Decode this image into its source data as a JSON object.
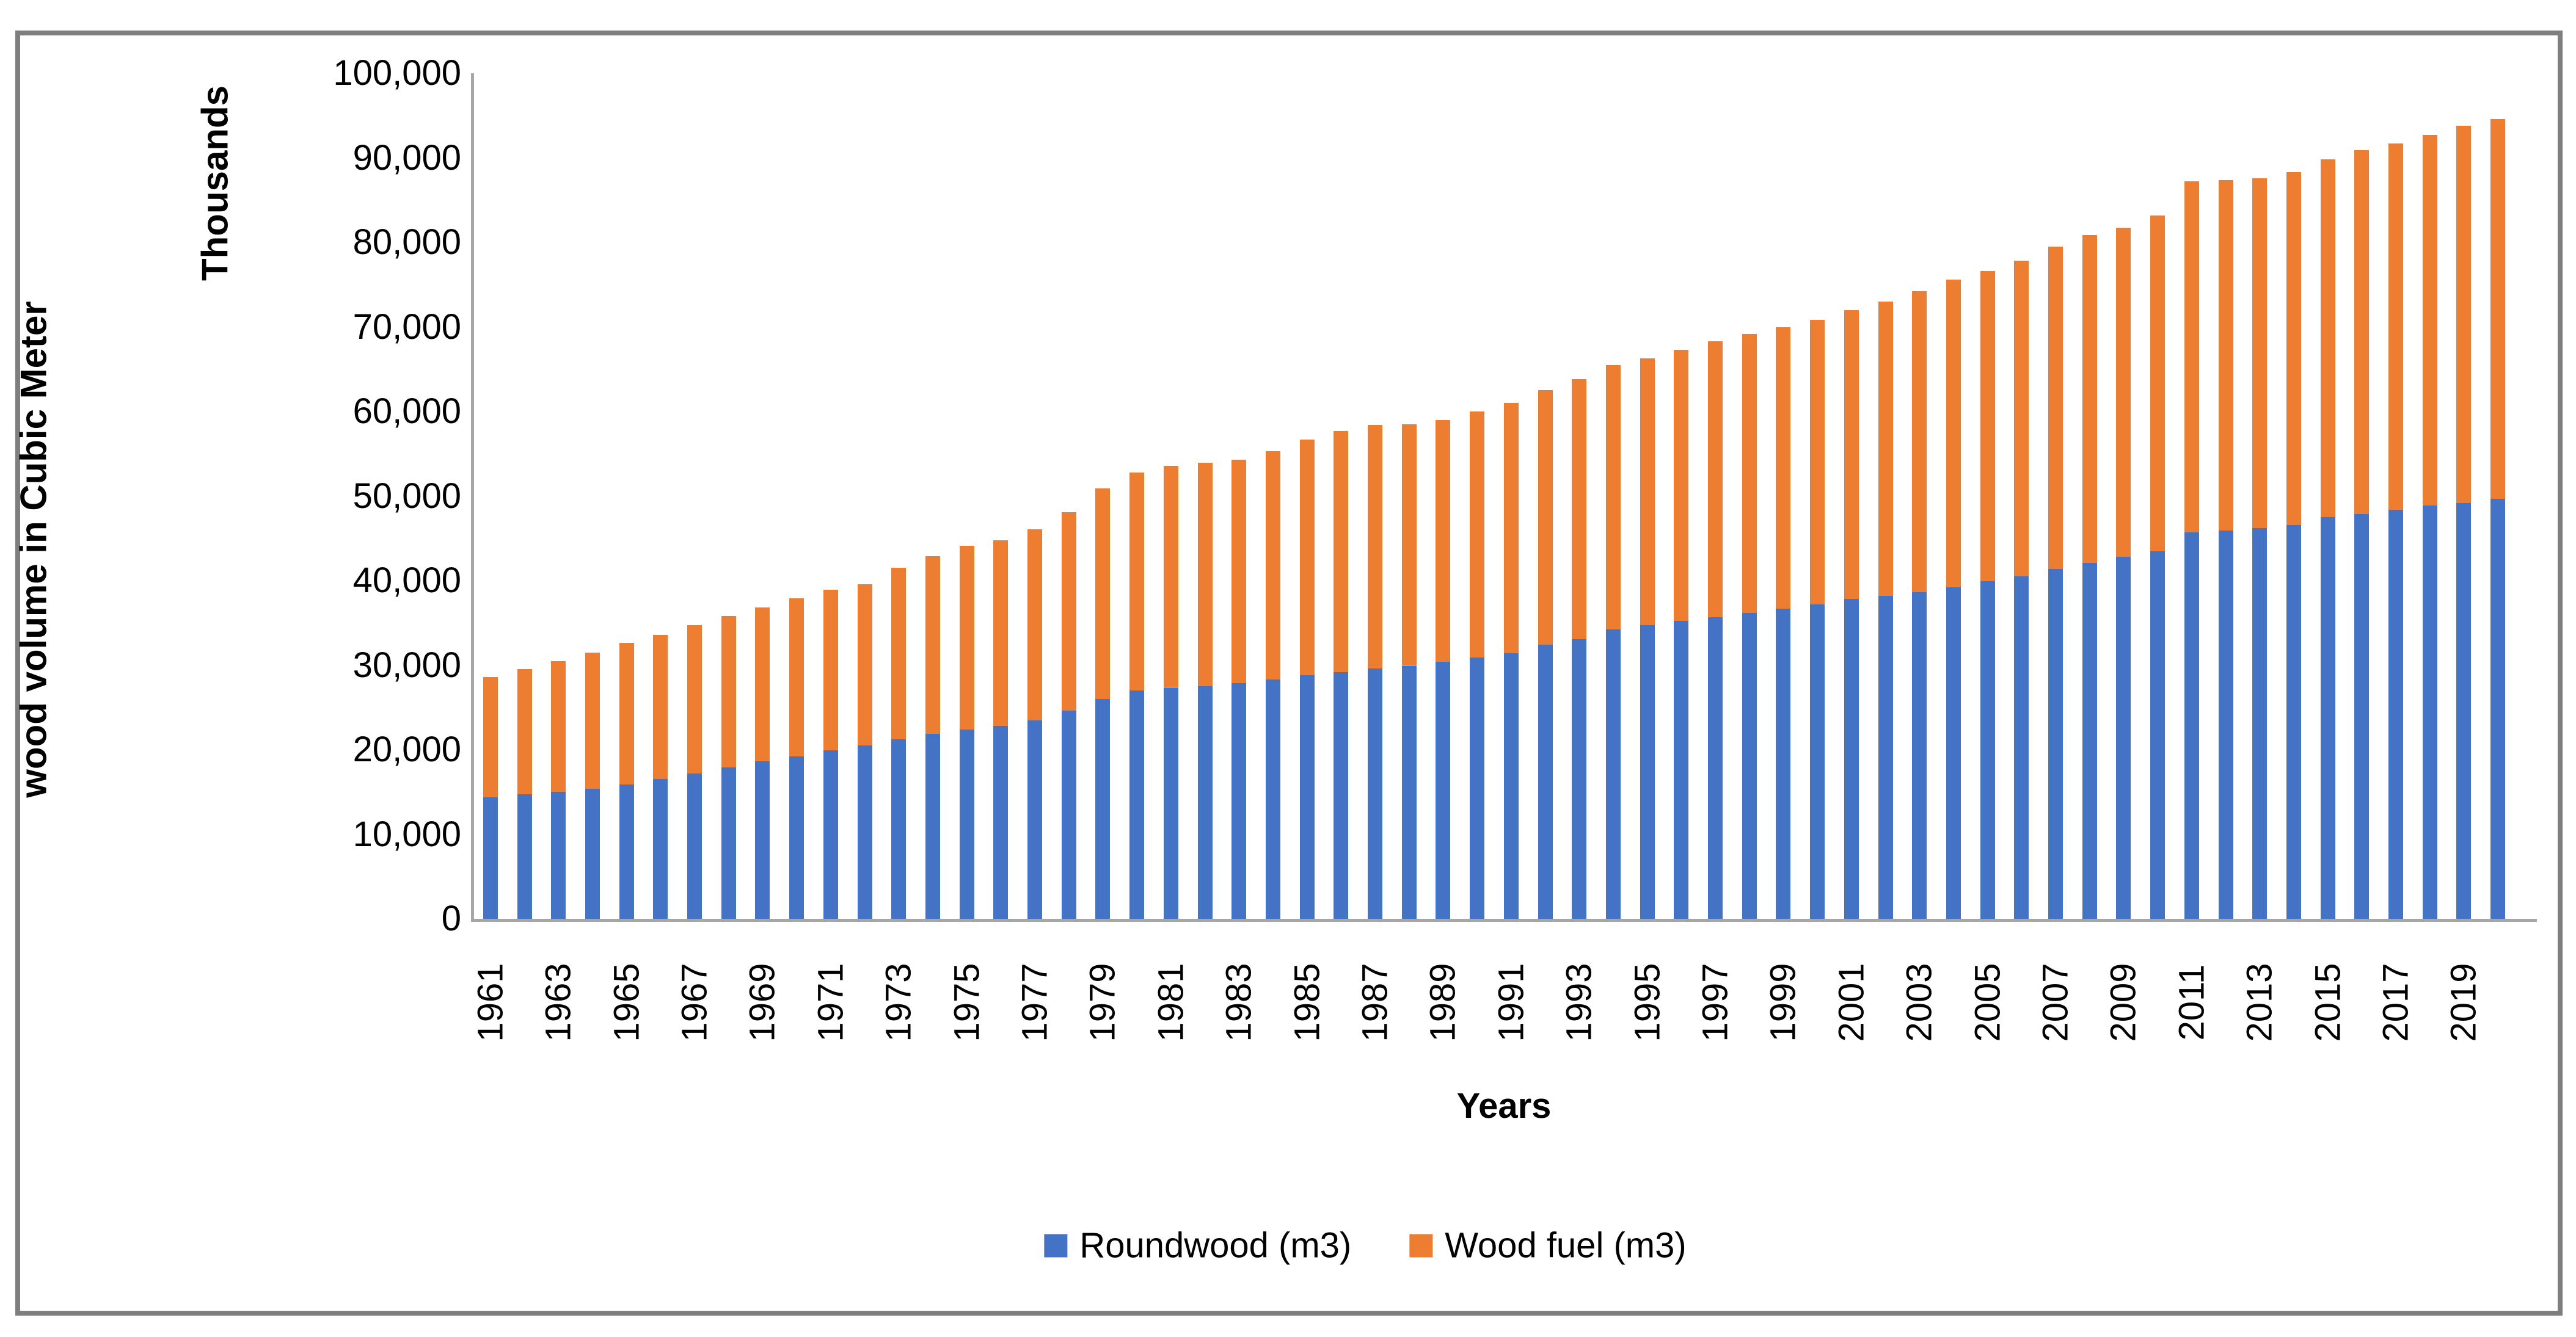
{
  "figure": {
    "background_color": "#FFFFFF",
    "border_color": "#7F7F7F",
    "axis_line_color": "#A6A6A6"
  },
  "axis_titles": {
    "x_title": "Years",
    "y_title": "wood volume in Cubic Meter",
    "y_units": "Thousands"
  },
  "legend": {
    "items": [
      {
        "label": "Roundwood (m3)",
        "color": "#4472C4"
      },
      {
        "label": "Wood fuel (m3)",
        "color": "#ED7D31"
      }
    ]
  },
  "chart_data": {
    "type": "bar",
    "stacked": true,
    "title": "",
    "xlabel": "Years",
    "ylabel": "wood volume in Cubic Meter",
    "y_units_label": "Thousands",
    "ylim": [
      0,
      100000
    ],
    "y_tick_step": 10000,
    "grid": false,
    "legend_position": "bottom",
    "categories": [
      1961,
      1962,
      1963,
      1964,
      1965,
      1966,
      1967,
      1968,
      1969,
      1970,
      1971,
      1972,
      1973,
      1974,
      1975,
      1976,
      1977,
      1978,
      1979,
      1980,
      1981,
      1982,
      1983,
      1984,
      1985,
      1986,
      1987,
      1988,
      1989,
      1990,
      1991,
      1992,
      1993,
      1994,
      1995,
      1996,
      1997,
      1998,
      1999,
      2000,
      2001,
      2002,
      2003,
      2004,
      2005,
      2006,
      2007,
      2008,
      2009,
      2010,
      2011,
      2012,
      2013,
      2014,
      2015,
      2016,
      2017,
      2018,
      2019,
      2020
    ],
    "x_tick_labels": [
      "1961",
      "1963",
      "1965",
      "1967",
      "1969",
      "1971",
      "1973",
      "1975",
      "1977",
      "1979",
      "1981",
      "1983",
      "1985",
      "1987",
      "1989",
      "1991",
      "1993",
      "1995",
      "1997",
      "1999",
      "2001",
      "2003",
      "2005",
      "2007",
      "2009",
      "2011",
      "2013",
      "2015",
      "2017",
      "2019"
    ],
    "y_tick_labels": [
      "0",
      "10,000",
      "20,000",
      "30,000",
      "40,000",
      "50,000",
      "60,000",
      "70,000",
      "80,000",
      "90,000",
      "100,000"
    ],
    "series": [
      {
        "name": "Roundwood (m3)",
        "color": "#4472C4",
        "values": [
          14400,
          14700,
          15000,
          15400,
          15900,
          16500,
          17200,
          17900,
          18600,
          19200,
          19900,
          20500,
          21200,
          21900,
          22400,
          22800,
          23500,
          24600,
          26000,
          27000,
          27400,
          27500,
          27900,
          28300,
          28800,
          29200,
          29600,
          30000,
          30400,
          30900,
          31400,
          32400,
          33100,
          34200,
          34700,
          35200,
          35700,
          36200,
          36700,
          37200,
          37800,
          38200,
          38600,
          39200,
          39900,
          40500,
          41400,
          42100,
          42800,
          43500,
          45700,
          45900,
          46200,
          46600,
          47500,
          47900,
          48400,
          48900,
          49200,
          49700
        ]
      },
      {
        "name": "Wood fuel (m3)",
        "color": "#ED7D31",
        "values": [
          14200,
          14800,
          15500,
          16100,
          16700,
          17100,
          17500,
          17900,
          18200,
          18700,
          19000,
          19100,
          20300,
          21000,
          21700,
          22000,
          22600,
          23500,
          24900,
          25800,
          26200,
          26400,
          26400,
          27000,
          27900,
          28500,
          28800,
          28500,
          28600,
          29100,
          29600,
          30100,
          30700,
          31300,
          31600,
          32100,
          32600,
          33000,
          33300,
          33600,
          34200,
          34800,
          35600,
          36400,
          36700,
          37300,
          38100,
          38800,
          38900,
          39700,
          41500,
          41500,
          41400,
          41700,
          42300,
          43000,
          43300,
          43800,
          44600,
          44900
        ]
      }
    ]
  }
}
